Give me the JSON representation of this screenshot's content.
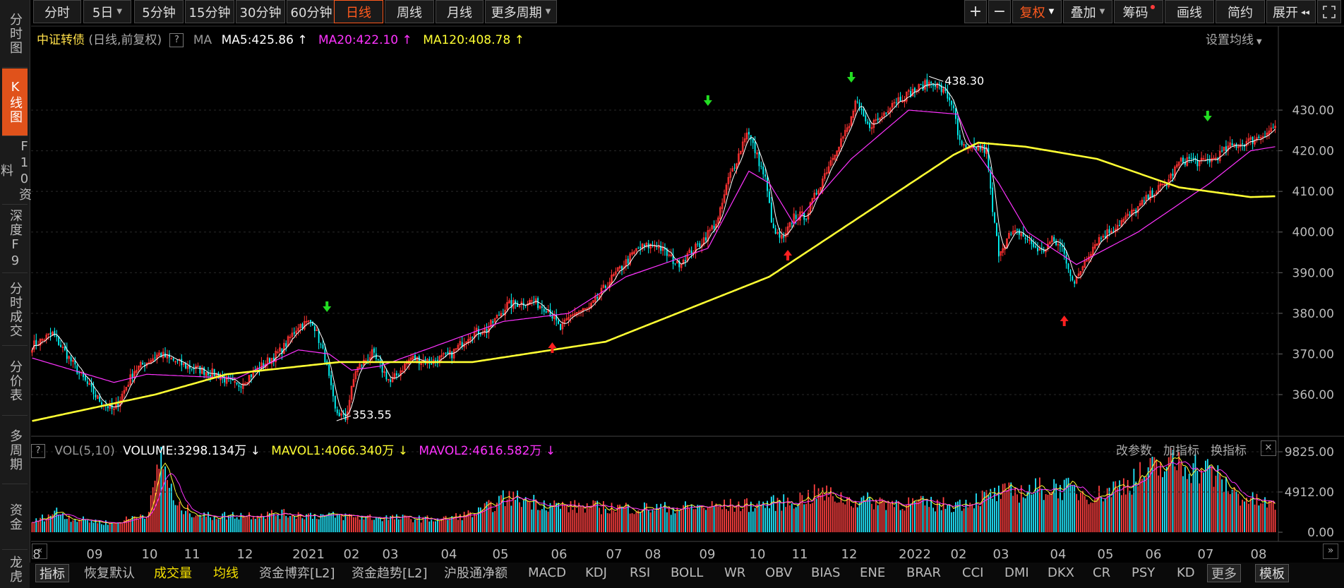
{
  "left_tabs": [
    "分时图",
    "K线图",
    "F10资料",
    "深度F9",
    "分时成交",
    "分价表",
    "多周期",
    "资金",
    "龙虎"
  ],
  "toolbar": {
    "periods": [
      "分时",
      "5日",
      "5分钟",
      "15分钟",
      "30分钟",
      "60分钟",
      "日线",
      "周线",
      "月线",
      "更多周期"
    ],
    "active_period": "日线",
    "right": [
      "+",
      "−",
      "复权",
      "叠加",
      "筹码",
      "画线",
      "简约",
      "展开"
    ],
    "expand_glyph": "◂◂"
  },
  "main_legend": {
    "name": "中证转债",
    "mode": "(日线,前复权)",
    "help": "?",
    "ma": "MA",
    "ma5": "MA5:425.86",
    "ma20": "MA20:422.10",
    "ma120": "MA120:408.78",
    "arrow_up": "↑",
    "settings": "设置均线",
    "colors": {
      "ma5": "#ffffff",
      "ma20": "#ff33ff",
      "ma120": "#ffff33"
    }
  },
  "vol_legend": {
    "help": "?",
    "name": "VOL(5,10)",
    "volume": "VOLUME:3298.134万",
    "mavol1": "MAVOL1:4066.340万",
    "mavol2": "MAVOL2:4616.582万",
    "arrow_down": "↓",
    "actions": [
      "改参数",
      "加指标",
      "换指标"
    ],
    "close": "✕"
  },
  "bottom_tabs": [
    "指标",
    "恢复默认",
    "成交量",
    "均线",
    "资金博弈[L2]",
    "资金趋势[L2]",
    "沪股通净额",
    "MACD",
    "KDJ",
    "RSI",
    "BOLL",
    "WR",
    "OBV",
    "BIAS",
    "ENE",
    "BRAR",
    "CCI",
    "DMI",
    "DKX",
    "CR",
    "PSY",
    "KD",
    "更多",
    "模板"
  ],
  "nav_left": "«",
  "nav_right": "»",
  "chart_data": {
    "type": "candlestick",
    "price_axis": {
      "ticks": [
        "430.00",
        "420.00",
        "410.00",
        "400.00",
        "390.00",
        "380.00",
        "370.00",
        "360.00"
      ],
      "range": [
        352,
        440
      ]
    },
    "volume_axis": {
      "ticks": [
        "9825.00",
        "4912.00",
        "0.00"
      ]
    },
    "time_axis": [
      "8",
      "09",
      "10",
      "11",
      "12",
      "2021",
      "02",
      "03",
      "04",
      "05",
      "06",
      "07",
      "08",
      "09",
      "10",
      "11",
      "12",
      "2022",
      "02",
      "03",
      "04",
      "05",
      "06",
      "07",
      "08"
    ],
    "annotations": {
      "high": "438.30",
      "low": "353.55"
    },
    "up_color": "#ff3232",
    "down_color": "#00ffff",
    "close_anchors": [
      [
        0,
        372
      ],
      [
        10,
        375
      ],
      [
        22,
        366
      ],
      [
        32,
        359
      ],
      [
        40,
        356
      ],
      [
        50,
        366
      ],
      [
        62,
        370
      ],
      [
        75,
        367
      ],
      [
        90,
        365
      ],
      [
        100,
        362
      ],
      [
        112,
        367
      ],
      [
        122,
        371
      ],
      [
        130,
        377
      ],
      [
        137,
        378
      ],
      [
        143,
        369
      ],
      [
        148,
        356
      ],
      [
        153,
        354
      ],
      [
        158,
        366
      ],
      [
        166,
        370
      ],
      [
        175,
        363
      ],
      [
        185,
        369
      ],
      [
        195,
        368
      ],
      [
        205,
        370
      ],
      [
        214,
        375
      ],
      [
        222,
        376
      ],
      [
        232,
        382
      ],
      [
        244,
        383
      ],
      [
        252,
        381
      ],
      [
        258,
        376
      ],
      [
        264,
        380
      ],
      [
        272,
        381
      ],
      [
        282,
        388
      ],
      [
        296,
        396
      ],
      [
        305,
        397
      ],
      [
        315,
        392
      ],
      [
        326,
        397
      ],
      [
        335,
        403
      ],
      [
        340,
        413
      ],
      [
        345,
        419
      ],
      [
        349,
        425
      ],
      [
        353,
        420
      ],
      [
        358,
        413
      ],
      [
        362,
        400
      ],
      [
        367,
        398
      ],
      [
        372,
        404
      ],
      [
        378,
        404
      ],
      [
        385,
        412
      ],
      [
        393,
        421
      ],
      [
        399,
        426
      ],
      [
        402,
        432
      ],
      [
        408,
        426
      ],
      [
        414,
        428
      ],
      [
        420,
        432
      ],
      [
        428,
        434
      ],
      [
        435,
        436
      ],
      [
        440,
        437
      ],
      [
        446,
        434
      ],
      [
        450,
        431
      ],
      [
        452,
        423
      ],
      [
        456,
        420
      ],
      [
        462,
        421
      ],
      [
        466,
        420
      ],
      [
        469,
        405
      ],
      [
        472,
        395
      ],
      [
        477,
        399
      ],
      [
        482,
        400
      ],
      [
        488,
        397
      ],
      [
        493,
        395
      ],
      [
        498,
        398
      ],
      [
        503,
        396
      ],
      [
        509,
        387
      ],
      [
        514,
        393
      ],
      [
        520,
        398
      ],
      [
        528,
        401
      ],
      [
        538,
        405
      ],
      [
        548,
        410
      ],
      [
        554,
        412
      ],
      [
        560,
        417
      ],
      [
        565,
        418
      ],
      [
        570,
        417
      ],
      [
        577,
        418
      ],
      [
        585,
        421
      ],
      [
        592,
        422
      ],
      [
        598,
        423
      ],
      [
        604,
        425
      ],
      [
        607,
        426
      ]
    ],
    "ma20_anchors": [
      [
        0,
        369
      ],
      [
        40,
        363
      ],
      [
        56,
        365
      ],
      [
        100,
        364
      ],
      [
        130,
        371
      ],
      [
        145,
        370
      ],
      [
        156,
        366
      ],
      [
        170,
        367
      ],
      [
        230,
        378
      ],
      [
        262,
        380
      ],
      [
        290,
        389
      ],
      [
        330,
        396
      ],
      [
        350,
        415
      ],
      [
        360,
        412
      ],
      [
        372,
        402
      ],
      [
        400,
        418
      ],
      [
        428,
        430
      ],
      [
        452,
        429
      ],
      [
        458,
        422
      ],
      [
        472,
        412
      ],
      [
        486,
        400
      ],
      [
        510,
        392
      ],
      [
        540,
        400
      ],
      [
        575,
        412
      ],
      [
        595,
        420
      ],
      [
        607,
        421
      ]
    ],
    "ma120_anchors": [
      [
        0,
        353.5
      ],
      [
        60,
        360
      ],
      [
        95,
        365
      ],
      [
        150,
        368
      ],
      [
        215,
        368
      ],
      [
        280,
        373
      ],
      [
        360,
        389
      ],
      [
        405,
        404
      ],
      [
        450,
        419
      ],
      [
        462,
        422
      ],
      [
        485,
        421
      ],
      [
        520,
        418
      ],
      [
        560,
        411
      ],
      [
        595,
        408.6
      ],
      [
        607,
        408.8
      ]
    ],
    "volume_anchors": [
      [
        0,
        1200
      ],
      [
        12,
        2600
      ],
      [
        20,
        1700
      ],
      [
        40,
        1100
      ],
      [
        57,
        2500
      ],
      [
        63,
        9800
      ],
      [
        70,
        3200
      ],
      [
        85,
        2000
      ],
      [
        120,
        2300
      ],
      [
        165,
        1900
      ],
      [
        200,
        1600
      ],
      [
        218,
        2500
      ],
      [
        232,
        4400
      ],
      [
        260,
        3200
      ],
      [
        310,
        3000
      ],
      [
        350,
        3400
      ],
      [
        370,
        3800
      ],
      [
        385,
        4900
      ],
      [
        400,
        4000
      ],
      [
        450,
        3400
      ],
      [
        470,
        4700
      ],
      [
        500,
        5700
      ],
      [
        520,
        4600
      ],
      [
        548,
        7800
      ],
      [
        560,
        8900
      ],
      [
        575,
        7600
      ],
      [
        590,
        4400
      ],
      [
        607,
        3300
      ]
    ]
  }
}
